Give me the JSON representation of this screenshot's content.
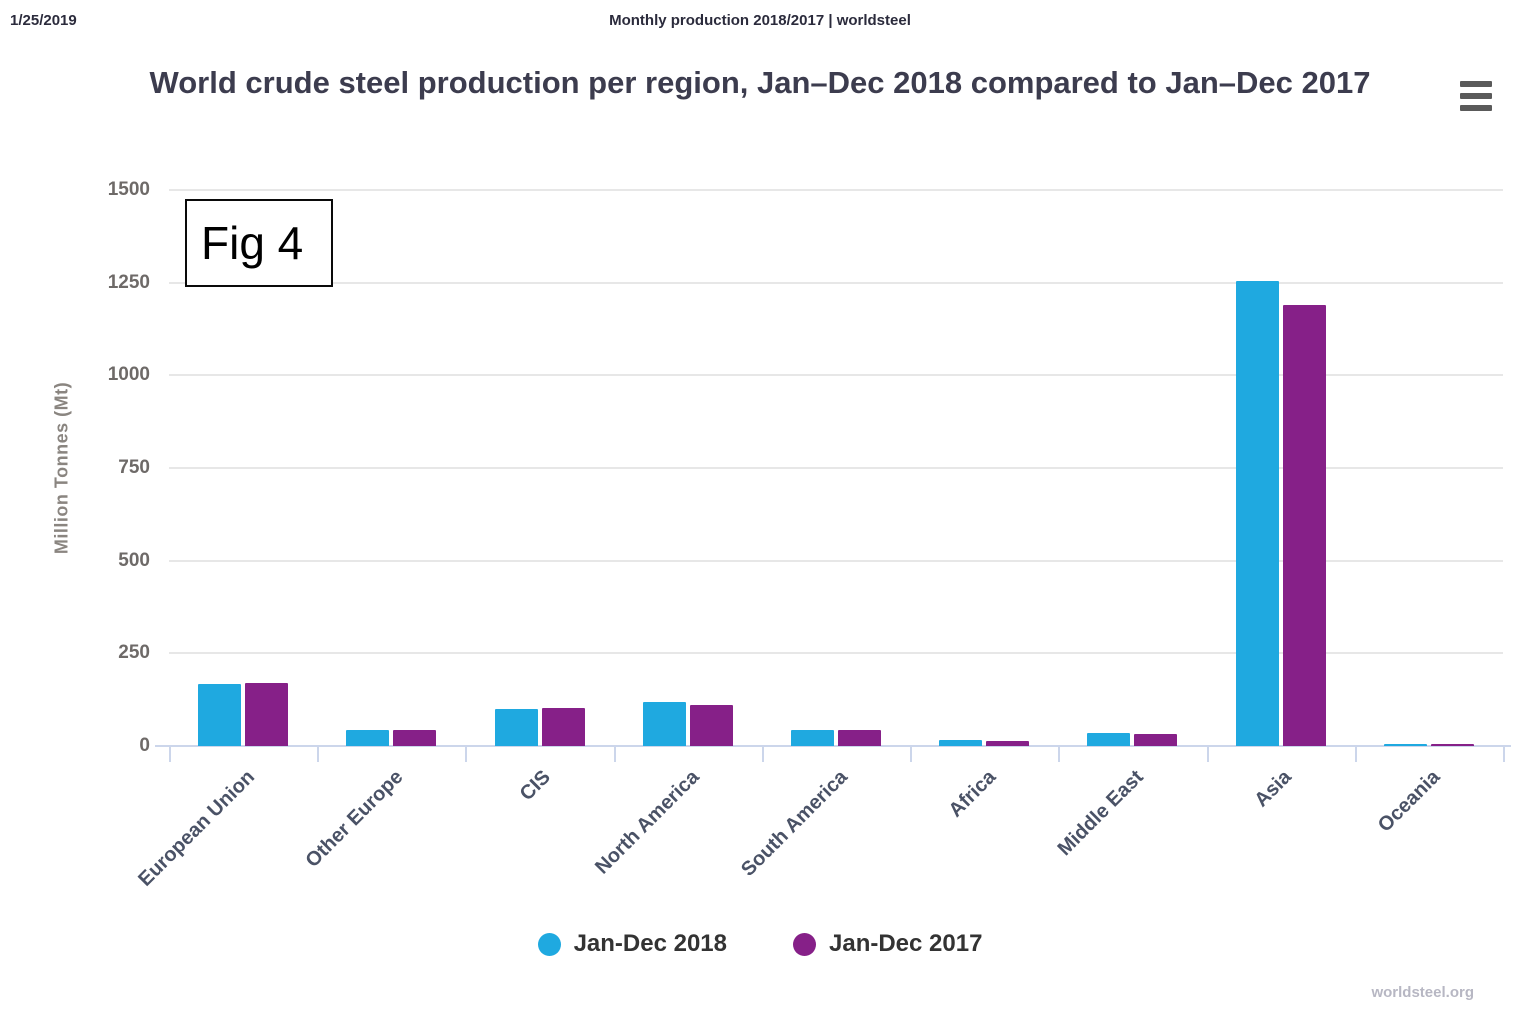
{
  "header": {
    "date": "1/25/2019",
    "doc_title": "Monthly production 2018/2017 | worldsteel"
  },
  "fig_label": "Fig 4",
  "footer": {
    "watermark": "worldsteel.org"
  },
  "colors": {
    "series_2018": "#1FA9E0",
    "series_2017": "#862088",
    "gridline": "#e7e7e7",
    "axis_line": "#ccd6eb",
    "title_text": "#3c3c4e"
  },
  "chart_data": {
    "type": "bar",
    "title": "World crude steel production per region, Jan–Dec 2018 compared to Jan–Dec 2017",
    "ylabel": "Million Tonnes (Mt)",
    "xlabel": "",
    "ylim": [
      0,
      1500
    ],
    "yticks": [
      0,
      250,
      500,
      750,
      1000,
      1250,
      1500
    ],
    "grid": true,
    "legend_position": "bottom",
    "categories": [
      "European Union",
      "Other Europe",
      "CIS",
      "North America",
      "South America",
      "Africa",
      "Middle East",
      "Asia",
      "Oceania"
    ],
    "series": [
      {
        "name": "Jan-Dec 2018",
        "color": "#1FA9E0",
        "values": [
          168,
          42,
          101,
          120,
          44,
          15,
          35,
          1255,
          6
        ]
      },
      {
        "name": "Jan-Dec 2017",
        "color": "#862088",
        "values": [
          169,
          42,
          102,
          112,
          44,
          14,
          33,
          1190,
          6
        ]
      }
    ]
  }
}
